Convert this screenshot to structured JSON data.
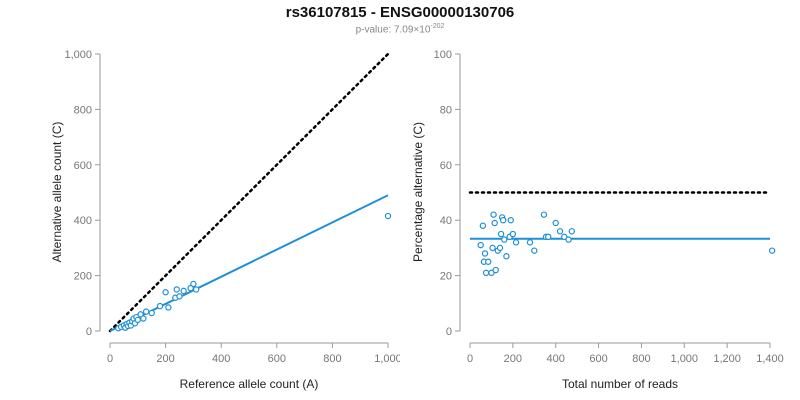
{
  "header": {
    "title": "rs36107815 - ENSG00000130706",
    "pvalue_prefix": "p-value: 7.09×10",
    "pvalue_exponent": "-202"
  },
  "colors": {
    "points": "#1f8fd6",
    "fit_line": "#1f8fd6",
    "reference_line": "#000000",
    "axis": "#999999",
    "tick_text": "#777777",
    "label_text": "#222222"
  },
  "chart_data": [
    {
      "type": "scatter",
      "name": "left",
      "xlabel": "Reference allele count (A)",
      "ylabel": "Alternative allele count (C)",
      "xlim": [
        0,
        1000
      ],
      "ylim": [
        0,
        1000
      ],
      "xticks": [
        0,
        200,
        400,
        600,
        800,
        1000
      ],
      "xtick_labels": [
        "0",
        "200",
        "400",
        "600",
        "800",
        "1,000"
      ],
      "yticks": [
        0,
        200,
        400,
        600,
        800,
        1000
      ],
      "ytick_labels": [
        "0",
        "200",
        "400",
        "600",
        "800",
        "1,000"
      ],
      "reference_line": {
        "x": [
          0,
          1000
        ],
        "y": [
          0,
          1000
        ],
        "style": "dotted"
      },
      "fit_line": {
        "x": [
          0,
          1000
        ],
        "y": [
          0,
          490
        ]
      },
      "points": [
        {
          "x": 30,
          "y": 10
        },
        {
          "x": 40,
          "y": 15
        },
        {
          "x": 50,
          "y": 20
        },
        {
          "x": 55,
          "y": 12
        },
        {
          "x": 60,
          "y": 25
        },
        {
          "x": 65,
          "y": 18
        },
        {
          "x": 70,
          "y": 30
        },
        {
          "x": 75,
          "y": 20
        },
        {
          "x": 80,
          "y": 35
        },
        {
          "x": 85,
          "y": 45
        },
        {
          "x": 90,
          "y": 28
        },
        {
          "x": 95,
          "y": 50
        },
        {
          "x": 100,
          "y": 40
        },
        {
          "x": 110,
          "y": 60
        },
        {
          "x": 120,
          "y": 45
        },
        {
          "x": 130,
          "y": 70
        },
        {
          "x": 150,
          "y": 65
        },
        {
          "x": 180,
          "y": 90
        },
        {
          "x": 200,
          "y": 140
        },
        {
          "x": 210,
          "y": 85
        },
        {
          "x": 235,
          "y": 120
        },
        {
          "x": 240,
          "y": 150
        },
        {
          "x": 250,
          "y": 125
        },
        {
          "x": 265,
          "y": 145
        },
        {
          "x": 290,
          "y": 155
        },
        {
          "x": 300,
          "y": 170
        },
        {
          "x": 310,
          "y": 150
        },
        {
          "x": 1000,
          "y": 415
        }
      ]
    },
    {
      "type": "scatter",
      "name": "right",
      "xlabel": "Total number of reads",
      "ylabel": "Percentage alternative (C)",
      "xlim": [
        0,
        1400
      ],
      "ylim": [
        0,
        100
      ],
      "xticks": [
        0,
        200,
        400,
        600,
        800,
        1000,
        1200,
        1400
      ],
      "xtick_labels": [
        "0",
        "200",
        "400",
        "600",
        "800",
        "1,000",
        "1,200",
        "1,400"
      ],
      "yticks": [
        0,
        20,
        40,
        60,
        80,
        100
      ],
      "ytick_labels": [
        "0",
        "20",
        "40",
        "60",
        "80",
        "100"
      ],
      "reference_line": {
        "x": [
          0,
          1400
        ],
        "y": [
          50,
          50
        ],
        "style": "dotted"
      },
      "fit_line": {
        "x": [
          0,
          1400
        ],
        "y": [
          33.3,
          33.3
        ]
      },
      "points": [
        {
          "x": 50,
          "y": 31
        },
        {
          "x": 60,
          "y": 38
        },
        {
          "x": 65,
          "y": 25
        },
        {
          "x": 70,
          "y": 28
        },
        {
          "x": 75,
          "y": 21
        },
        {
          "x": 85,
          "y": 25
        },
        {
          "x": 100,
          "y": 21
        },
        {
          "x": 105,
          "y": 30
        },
        {
          "x": 110,
          "y": 42
        },
        {
          "x": 115,
          "y": 39
        },
        {
          "x": 120,
          "y": 22
        },
        {
          "x": 130,
          "y": 29
        },
        {
          "x": 140,
          "y": 30
        },
        {
          "x": 145,
          "y": 35
        },
        {
          "x": 150,
          "y": 41
        },
        {
          "x": 155,
          "y": 40
        },
        {
          "x": 160,
          "y": 33
        },
        {
          "x": 170,
          "y": 27
        },
        {
          "x": 185,
          "y": 34
        },
        {
          "x": 190,
          "y": 40
        },
        {
          "x": 200,
          "y": 35
        },
        {
          "x": 215,
          "y": 32
        },
        {
          "x": 280,
          "y": 32
        },
        {
          "x": 300,
          "y": 29
        },
        {
          "x": 345,
          "y": 42
        },
        {
          "x": 355,
          "y": 34
        },
        {
          "x": 365,
          "y": 34
        },
        {
          "x": 400,
          "y": 39
        },
        {
          "x": 420,
          "y": 36
        },
        {
          "x": 440,
          "y": 34
        },
        {
          "x": 460,
          "y": 33
        },
        {
          "x": 475,
          "y": 36
        },
        {
          "x": 1410,
          "y": 29
        }
      ]
    }
  ]
}
